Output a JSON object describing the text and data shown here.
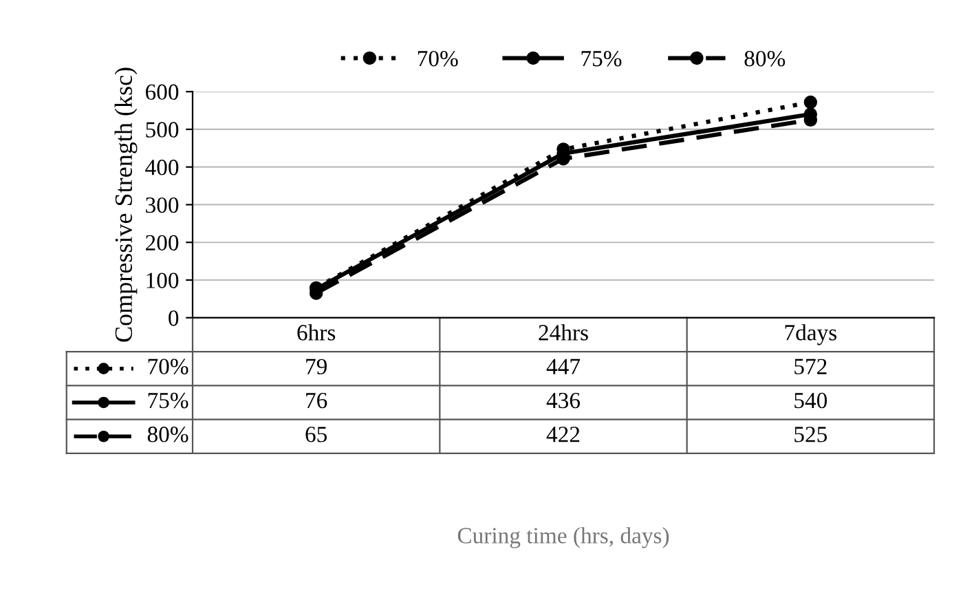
{
  "chart_data": {
    "type": "line",
    "ylabel": "Compressive Strength (ksc)",
    "annotations": [
      "Curing time (hrs, days)"
    ],
    "categories": [
      "6hrs",
      "24hrs",
      "7days"
    ],
    "series": [
      {
        "name": "70%",
        "color": "#000000",
        "line_style": "dotted",
        "values": [
          79,
          447,
          572
        ]
      },
      {
        "name": "75%",
        "color": "#000000",
        "line_style": "solid",
        "values": [
          76,
          436,
          540
        ]
      },
      {
        "name": "80%",
        "color": "#000000",
        "line_style": "dashed",
        "values": [
          65,
          422,
          525
        ]
      }
    ],
    "ylim": [
      0,
      600
    ],
    "yticks": [
      0,
      100,
      200,
      300,
      400,
      500,
      600
    ],
    "grid": "y",
    "legend": "top",
    "marker": "circle",
    "data_labels": true
  }
}
